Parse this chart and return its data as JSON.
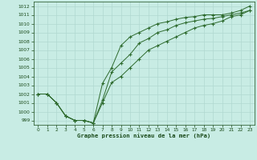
{
  "x": [
    0,
    1,
    2,
    3,
    4,
    5,
    6,
    7,
    8,
    9,
    10,
    11,
    12,
    13,
    14,
    15,
    16,
    17,
    18,
    19,
    20,
    21,
    22,
    23
  ],
  "line1": [
    1002.0,
    1002.0,
    1001.0,
    999.5,
    999.0,
    999.0,
    998.7,
    1003.2,
    1005.0,
    1007.5,
    1008.5,
    1009.0,
    1009.5,
    1010.0,
    1010.2,
    1010.5,
    1010.7,
    1010.8,
    1011.0,
    1011.0,
    1011.0,
    1011.2,
    1011.5,
    1012.0
  ],
  "line2": [
    1002.0,
    1002.0,
    1001.0,
    999.5,
    999.0,
    999.0,
    998.7,
    1001.3,
    1004.5,
    1005.5,
    1006.5,
    1007.8,
    1008.3,
    1009.0,
    1009.3,
    1009.8,
    1010.1,
    1010.3,
    1010.5,
    1010.6,
    1010.8,
    1011.0,
    1011.2,
    1011.5
  ],
  "line3": [
    1002.0,
    1002.0,
    1001.0,
    999.5,
    999.0,
    999.0,
    998.7,
    1001.0,
    1003.3,
    1004.0,
    1005.0,
    1006.0,
    1007.0,
    1007.5,
    1008.0,
    1008.5,
    1009.0,
    1009.5,
    1009.8,
    1010.0,
    1010.3,
    1010.8,
    1011.0,
    1011.5
  ],
  "line_color": "#2d6a2d",
  "bg_color": "#c8ece4",
  "grid_color": "#b0d8d0",
  "text_color": "#1a4a1a",
  "xlabel": "Graphe pression niveau de la mer (hPa)",
  "ylim": [
    998.5,
    1012.5
  ],
  "xlim": [
    -0.5,
    23.5
  ],
  "yticks": [
    999,
    1000,
    1001,
    1002,
    1003,
    1004,
    1005,
    1006,
    1007,
    1008,
    1009,
    1010,
    1011,
    1012
  ],
  "xticks": [
    0,
    1,
    2,
    3,
    4,
    5,
    6,
    7,
    8,
    9,
    10,
    11,
    12,
    13,
    14,
    15,
    16,
    17,
    18,
    19,
    20,
    21,
    22,
    23
  ]
}
